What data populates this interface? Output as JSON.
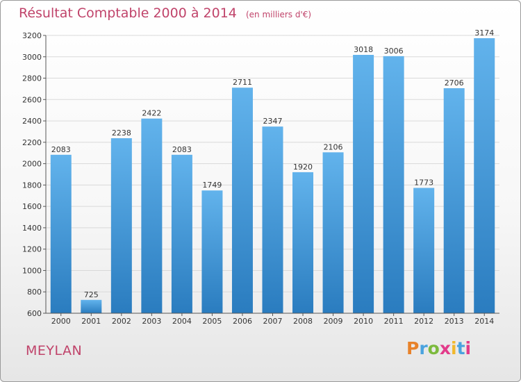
{
  "title": "Résultat Comptable 2000 à 2014",
  "subtitle": "(en milliers d'€)",
  "city": "MEYLAN",
  "logo": {
    "letters": [
      "P",
      "r",
      "o",
      "x",
      "i",
      "t",
      "i"
    ],
    "colors": [
      "#e8822a",
      "#4aa3df",
      "#7cba3d",
      "#e23b8a",
      "#f1b82d",
      "#4aa3df",
      "#e23b8a"
    ]
  },
  "colors": {
    "bar_light": "#62b3ec",
    "bar_dark": "#2a7cbf",
    "text": "#333333",
    "accent": "#c0436a"
  },
  "chart_data": {
    "type": "bar",
    "categories": [
      "2000",
      "2001",
      "2002",
      "2003",
      "2004",
      "2005",
      "2006",
      "2007",
      "2008",
      "2009",
      "2010",
      "2011",
      "2012",
      "2013",
      "2014"
    ],
    "values": [
      2083,
      725,
      2238,
      2422,
      2083,
      1749,
      2711,
      2347,
      1920,
      2106,
      3018,
      3006,
      1773,
      2706,
      3174
    ],
    "ylim": [
      600,
      3200
    ],
    "yticks": [
      600,
      800,
      1000,
      1200,
      1400,
      1600,
      1800,
      2000,
      2200,
      2400,
      2600,
      2800,
      3000,
      3200
    ],
    "grid": true,
    "data_labels": true
  }
}
